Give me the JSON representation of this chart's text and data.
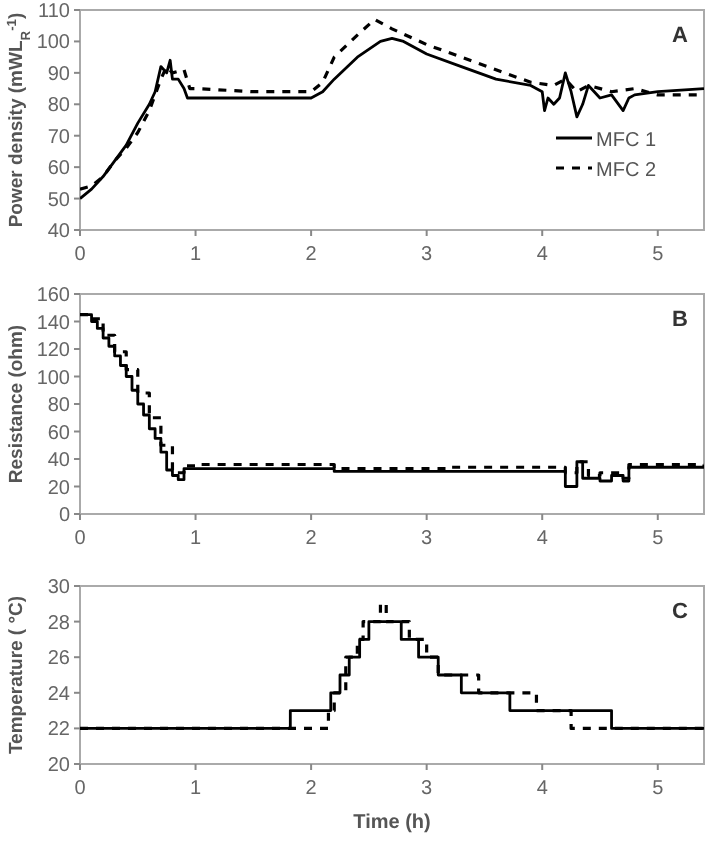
{
  "chart_data": [
    {
      "type": "line",
      "ylabel": "Power density (mWL$_{R}$$^{-1}$)",
      "annotations": [
        "A"
      ],
      "xlim": [
        0,
        5.4
      ],
      "xticks": [
        0,
        1,
        2,
        3,
        4,
        5
      ],
      "ylim": [
        40,
        110
      ],
      "yticks": [
        40,
        50,
        60,
        70,
        80,
        90,
        100,
        110
      ],
      "legend": "right",
      "series": [
        {
          "name": "MFC 1",
          "color": "#000000",
          "line_style": "solid",
          "x": [
            0,
            0.1,
            0.2,
            0.3,
            0.4,
            0.5,
            0.6,
            0.65,
            0.7,
            0.75,
            0.78,
            0.8,
            0.85,
            0.9,
            0.93,
            1.0,
            1.5,
            2.0,
            2.1,
            2.2,
            2.4,
            2.6,
            2.7,
            2.8,
            3.0,
            3.3,
            3.6,
            3.9,
            4.0,
            4.02,
            4.05,
            4.1,
            4.15,
            4.2,
            4.25,
            4.3,
            4.35,
            4.4,
            4.5,
            4.6,
            4.7,
            4.75,
            4.8,
            5.0,
            5.4
          ],
          "values": [
            50,
            53,
            57,
            62,
            67,
            74,
            80,
            84,
            92,
            90,
            94,
            88,
            88,
            85,
            82,
            82,
            82,
            82,
            84,
            88,
            95,
            100,
            101,
            100,
            96,
            92,
            88,
            86,
            84,
            78,
            82,
            80,
            82,
            90,
            84,
            76,
            80,
            86,
            82,
            83,
            78,
            82,
            83,
            84,
            85
          ]
        },
        {
          "name": "MFC 2",
          "color": "#000000",
          "line_style": "dashed",
          "x": [
            0,
            0.1,
            0.2,
            0.3,
            0.4,
            0.5,
            0.6,
            0.7,
            0.75,
            0.8,
            0.9,
            0.95,
            1.0,
            1.5,
            2.0,
            2.1,
            2.2,
            2.4,
            2.55,
            2.7,
            3.0,
            3.3,
            3.6,
            3.9,
            4.1,
            4.2,
            4.3,
            4.4,
            4.6,
            4.8,
            5.0,
            5.4
          ],
          "values": [
            53,
            54,
            57,
            62,
            66,
            71,
            78,
            88,
            92,
            90,
            91,
            85,
            85,
            84,
            84,
            87,
            95,
            102,
            107,
            104,
            99,
            95,
            91,
            87,
            86,
            88,
            84,
            86,
            84,
            85,
            83,
            83
          ]
        }
      ]
    },
    {
      "type": "step",
      "ylabel": "Resistance (ohm)",
      "annotations": [
        "B"
      ],
      "xlim": [
        0,
        5.4
      ],
      "xticks": [
        0,
        1,
        2,
        3,
        4,
        5
      ],
      "ylim": [
        0,
        160
      ],
      "yticks": [
        0,
        20,
        40,
        60,
        80,
        100,
        120,
        140,
        160
      ],
      "series": [
        {
          "color": "#000000",
          "line_style": "solid",
          "x": [
            0,
            0.1,
            0.15,
            0.2,
            0.25,
            0.3,
            0.35,
            0.4,
            0.45,
            0.5,
            0.55,
            0.6,
            0.65,
            0.7,
            0.75,
            0.8,
            0.85,
            0.9,
            1.0,
            2.2,
            4.2,
            4.3,
            4.35,
            4.4,
            4.5,
            4.6,
            4.7,
            4.75,
            5.4
          ],
          "values": [
            145,
            140,
            135,
            128,
            122,
            115,
            108,
            100,
            90,
            80,
            72,
            62,
            55,
            45,
            32,
            28,
            25,
            33,
            33,
            31,
            20,
            38,
            26,
            26,
            24,
            28,
            24,
            34,
            34
          ]
        },
        {
          "color": "#000000",
          "line_style": "dashed",
          "x": [
            0,
            0.1,
            0.2,
            0.3,
            0.4,
            0.5,
            0.6,
            0.7,
            0.8,
            0.9,
            1.0,
            2.2,
            3.2,
            4.2,
            4.3,
            4.4,
            4.5,
            4.7,
            4.75,
            5.4
          ],
          "values": [
            145,
            142,
            130,
            118,
            105,
            88,
            70,
            50,
            30,
            35,
            36,
            33,
            34,
            30,
            38,
            28,
            30,
            26,
            36,
            35
          ]
        }
      ]
    },
    {
      "type": "step",
      "ylabel": "Temperature ( °C)",
      "xlabel": "Time (h)",
      "annotations": [
        "C"
      ],
      "xlim": [
        0,
        5.4
      ],
      "xticks": [
        0,
        1,
        2,
        3,
        4,
        5
      ],
      "ylim": [
        20,
        30
      ],
      "yticks": [
        20,
        22,
        24,
        26,
        28,
        30
      ],
      "series": [
        {
          "color": "#000000",
          "line_style": "solid",
          "x": [
            0,
            1.82,
            2.17,
            2.25,
            2.33,
            2.42,
            2.5,
            2.78,
            2.93,
            3.1,
            3.3,
            3.72,
            4.6,
            5.4
          ],
          "values": [
            22,
            23,
            24,
            25,
            26,
            27,
            28,
            27,
            26,
            25,
            24,
            23,
            22,
            22
          ]
        },
        {
          "color": "#000000",
          "line_style": "dashed",
          "x": [
            0,
            2.15,
            2.2,
            2.3,
            2.4,
            2.45,
            2.6,
            2.65,
            2.85,
            3.0,
            3.1,
            3.45,
            3.95,
            4.25,
            5.4
          ],
          "values": [
            22,
            23,
            24,
            26,
            27,
            28,
            29,
            28,
            27,
            26,
            25,
            24,
            23,
            22,
            22
          ]
        }
      ]
    }
  ]
}
